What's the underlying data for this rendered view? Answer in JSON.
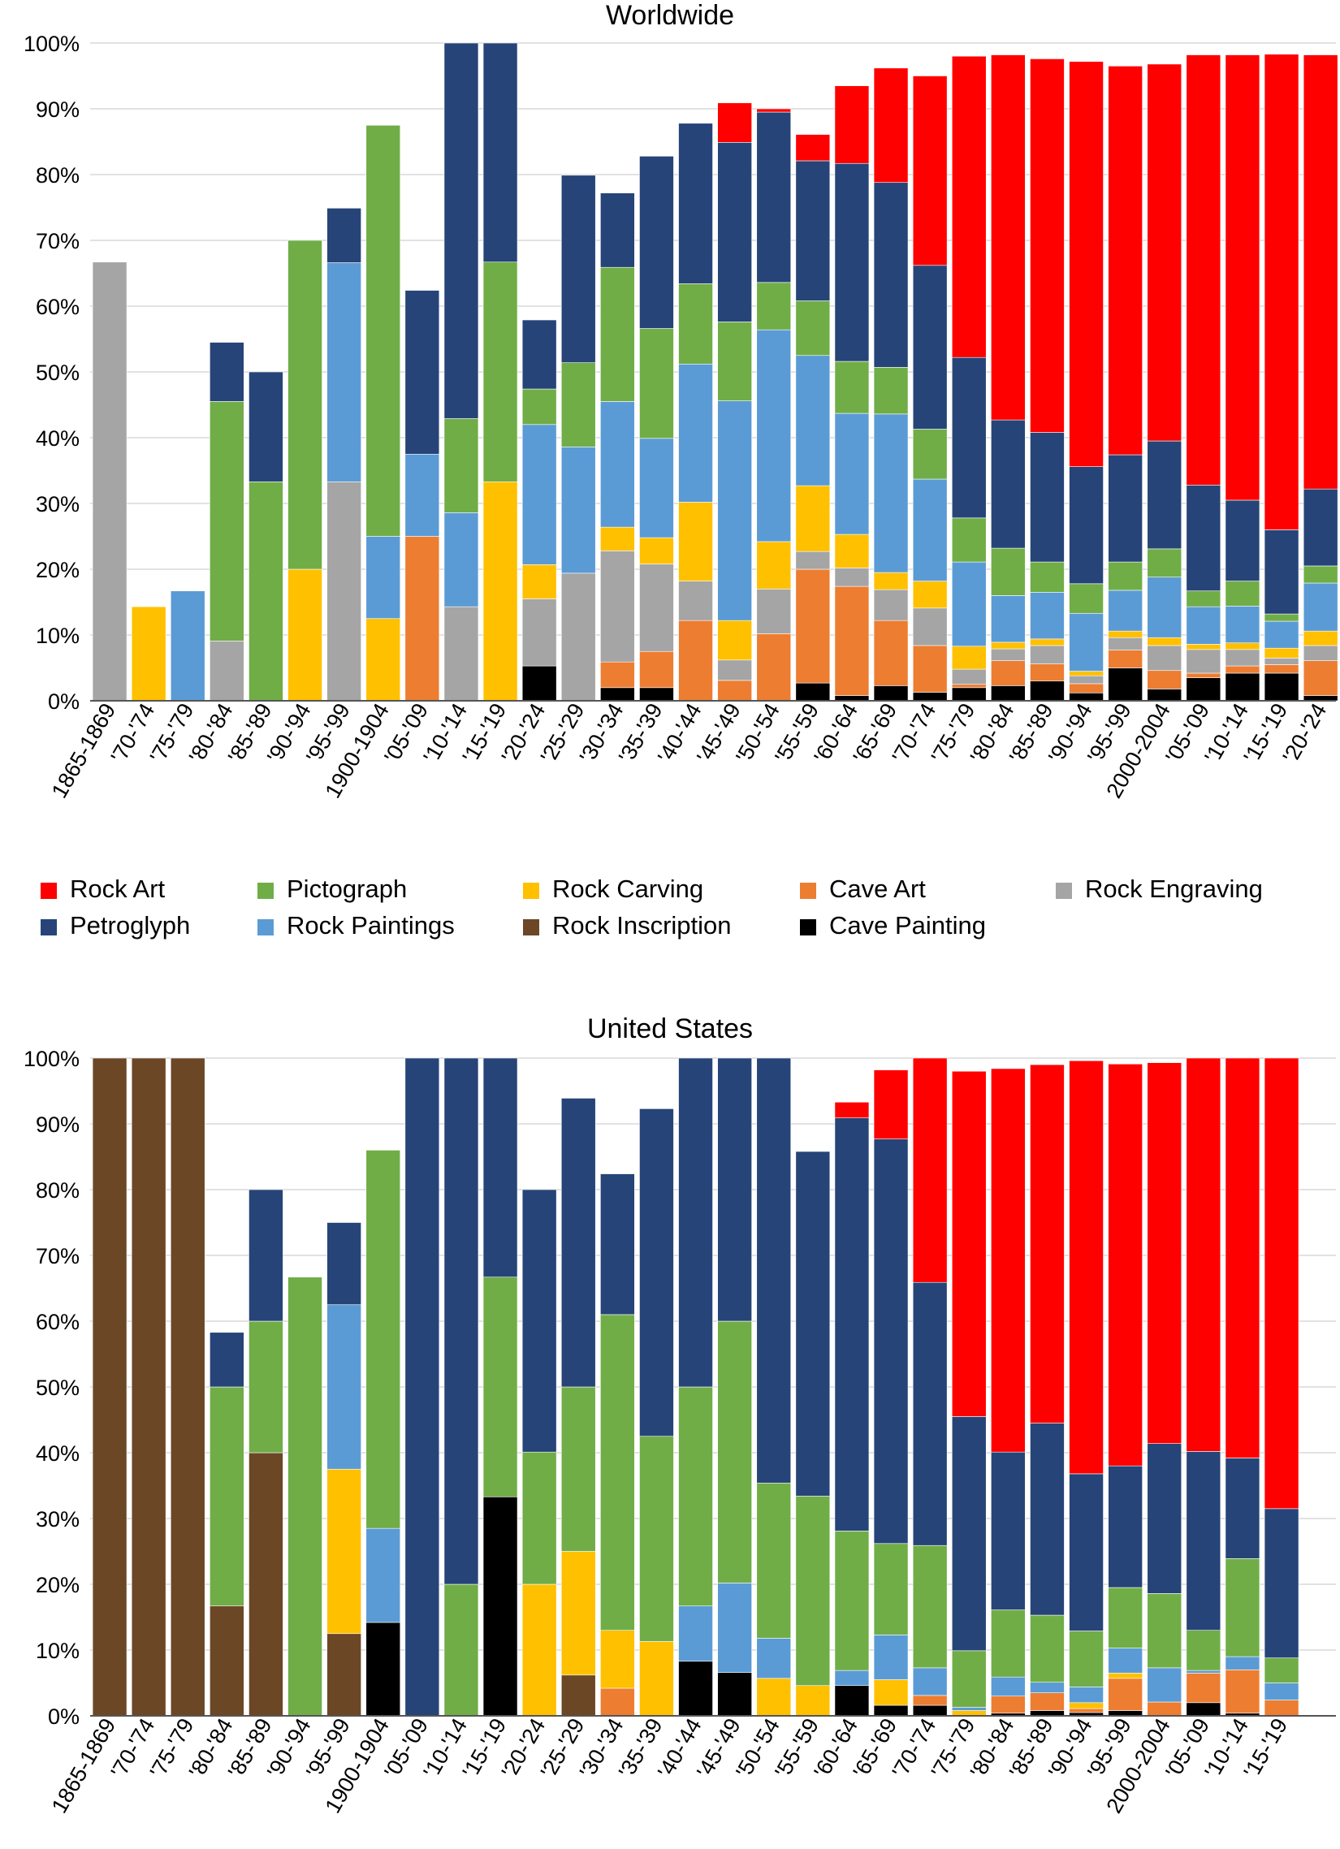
{
  "colors": {
    "Rock Art": "#FF0000",
    "Petroglyph": "#264478",
    "Pictograph": "#70AD47",
    "Rock Paintings": "#5B9BD5",
    "Rock Carving": "#FFC000",
    "Rock Inscription": "#6B4726",
    "Cave Art": "#ED7D31",
    "Cave Painting": "#000000",
    "Rock Engraving": "#A5A5A5"
  },
  "legend": [
    "Rock Art",
    "Pictograph",
    "Rock Carving",
    "Cave Art",
    "Rock Engraving",
    "Petroglyph",
    "Rock Paintings",
    "Rock Inscription",
    "Cave Painting"
  ],
  "chart_data": [
    {
      "type": "bar",
      "stacked": true,
      "title": "Worldwide",
      "ylim": [
        0,
        100
      ],
      "yticks": [
        "0%",
        "10%",
        "20%",
        "30%",
        "40%",
        "50%",
        "60%",
        "70%",
        "80%",
        "90%",
        "100%"
      ],
      "stack_order": [
        "Cave Painting",
        "Cave Art",
        "Rock Inscription",
        "Rock Engraving",
        "Rock Carving",
        "Rock Paintings",
        "Pictograph",
        "Petroglyph",
        "Rock Art"
      ],
      "categories": [
        "1865-1869",
        "'70-'74",
        "'75-'79",
        "'80-'84",
        "'85-'89",
        "'90-'94",
        "'95-'99",
        "1900-1904",
        "'05-'09",
        "'10-'14",
        "'15-'19",
        "'20-'24",
        "'25-'29",
        "'30-'34",
        "'35-'39",
        "'40-'44",
        "'45-'49",
        "'50-'54",
        "'55-'59",
        "'60-'64",
        "'65-'69",
        "'70-'74",
        "'75-'79",
        "'80-'84",
        "'85-'89",
        "'90-'94",
        "'95-'99",
        "2000-2004",
        "'05-'09",
        "'10-'14",
        "'15-'19",
        "'20-'24"
      ],
      "series": [
        {
          "name": "Cave Painting",
          "values": [
            0,
            0,
            0,
            0,
            0,
            0,
            0,
            0,
            0,
            0,
            0,
            5.3,
            0,
            2,
            2,
            0,
            0,
            0,
            2.7,
            0.8,
            2.3,
            1.3,
            2,
            2.3,
            3,
            1.2,
            5,
            1.8,
            3.5,
            4.2,
            4.2,
            0.8
          ]
        },
        {
          "name": "Cave Art",
          "values": [
            0,
            0,
            0,
            0,
            0,
            0,
            0,
            0,
            25,
            0,
            0,
            0,
            0,
            3.9,
            5.5,
            12.2,
            3.1,
            10.2,
            17.3,
            16.6,
            9.9,
            7.1,
            0.5,
            3.8,
            2.6,
            1.4,
            2.7,
            2.8,
            0.7,
            1.1,
            1.3,
            5.3
          ]
        },
        {
          "name": "Rock Inscription",
          "values": [
            0,
            0,
            0,
            0,
            0,
            0,
            0,
            0,
            0,
            0,
            0,
            0,
            0,
            0,
            0,
            0,
            0,
            0,
            0,
            0,
            0,
            0,
            0,
            0,
            0,
            0,
            0,
            0,
            0,
            0,
            0,
            0
          ]
        },
        {
          "name": "Rock Engraving",
          "values": [
            66.7,
            0,
            0,
            9.1,
            0,
            0,
            33.3,
            0,
            0,
            14.3,
            0,
            10.2,
            19.4,
            16.9,
            13.3,
            6,
            3.1,
            6.8,
            2.7,
            2.8,
            4.7,
            5.7,
            2.3,
            1.8,
            2.8,
            1.2,
            1.9,
            3.8,
            3.6,
            2.5,
            1,
            2.3
          ]
        },
        {
          "name": "Rock Carving",
          "values": [
            0,
            14.3,
            0,
            0,
            0,
            20,
            0,
            12.5,
            0,
            0,
            33.3,
            5.2,
            0,
            3.6,
            4,
            12,
            6,
            7.2,
            10,
            5.1,
            2.6,
            4.1,
            3.5,
            1,
            1,
            0.7,
            1,
            1.2,
            0.8,
            1,
            1.5,
            2.2
          ]
        },
        {
          "name": "Rock Paintings",
          "values": [
            0,
            0,
            16.7,
            0,
            0,
            0,
            33.3,
            12.5,
            12.5,
            14.3,
            0,
            21.3,
            19.2,
            19.1,
            15.1,
            21,
            33.4,
            32.2,
            19.8,
            18.4,
            24.1,
            15.5,
            12.8,
            7.1,
            7.1,
            8.8,
            6.2,
            9.2,
            5.7,
            5.6,
            4.1,
            7.3
          ]
        },
        {
          "name": "Pictograph",
          "values": [
            0,
            0,
            0,
            36.4,
            33.3,
            50,
            0,
            62.5,
            0,
            14.3,
            33.4,
            5.4,
            12.8,
            20.4,
            16.7,
            12.2,
            12,
            7.2,
            8.3,
            7.9,
            7.1,
            7.6,
            6.7,
            7.2,
            4.6,
            4.5,
            4.3,
            4.3,
            2.4,
            3.8,
            1.1,
            2.6
          ]
        },
        {
          "name": "Petroglyph",
          "values": [
            0,
            0,
            0,
            9,
            16.7,
            0,
            8.3,
            0,
            24.9,
            57.1,
            33.3,
            10.5,
            28.5,
            11.3,
            26.2,
            24.4,
            27.3,
            25.9,
            21.3,
            30.1,
            28.1,
            24.9,
            24.4,
            19.5,
            19.7,
            17.8,
            16.3,
            16.4,
            16.1,
            12.3,
            12.8,
            11.7
          ]
        },
        {
          "name": "Rock Art",
          "values": [
            0,
            0,
            0,
            0,
            0,
            0,
            0,
            0,
            0,
            0,
            0,
            0,
            0,
            0,
            0,
            0,
            6,
            0.5,
            4,
            11.8,
            17.4,
            28.8,
            45.8,
            55.5,
            56.8,
            61.6,
            59.1,
            57.3,
            65.4,
            67.7,
            72.3,
            66
          ]
        }
      ]
    },
    {
      "type": "bar",
      "stacked": true,
      "title": "United States",
      "ylim": [
        0,
        100
      ],
      "yticks": [
        "0%",
        "10%",
        "20%",
        "30%",
        "40%",
        "50%",
        "60%",
        "70%",
        "80%",
        "90%",
        "100%"
      ],
      "stack_order": [
        "Cave Painting",
        "Cave Art",
        "Rock Inscription",
        "Rock Engraving",
        "Rock Carving",
        "Rock Paintings",
        "Pictograph",
        "Petroglyph",
        "Rock Art"
      ],
      "categories": [
        "1865-1869",
        "'70-'74",
        "'75-'79",
        "'80-'84",
        "'85-'89",
        "'90-'94",
        "'95-'99",
        "1900-1904",
        "'05-'09",
        "'10-'14",
        "'15-'19",
        "'20-'24",
        "'25-'29",
        "'30-'34",
        "'35-'39",
        "'40-'44",
        "'45-'49",
        "'50-'54",
        "'55-'59",
        "'60-'64",
        "'65-'69",
        "'70-'74",
        "'75-'79",
        "'80-'84",
        "'85-'89",
        "'90-'94",
        "'95-'99",
        "2000-2004",
        "'05-'09",
        "'10-'14",
        "'15-'19"
      ],
      "series": [
        {
          "name": "Cave Painting",
          "values": [
            0,
            0,
            0,
            0,
            0,
            0,
            0,
            14.2,
            0,
            0,
            33.3,
            0,
            0,
            0,
            0,
            8.3,
            6.6,
            0,
            0,
            4.6,
            1.6,
            1.6,
            0,
            0.4,
            0.8,
            0.5,
            0.8,
            0,
            2,
            0.4,
            0
          ]
        },
        {
          "name": "Cave Art",
          "values": [
            0,
            0,
            0,
            0,
            0,
            0,
            0,
            0,
            0,
            0,
            0,
            0,
            0,
            4.2,
            0,
            0,
            0,
            0,
            0,
            0,
            0,
            1.5,
            0,
            2.6,
            2.7,
            0.6,
            4.9,
            2.1,
            4.5,
            6.6,
            2.4
          ]
        },
        {
          "name": "Rock Inscription",
          "values": [
            100,
            100,
            100,
            16.7,
            40,
            0,
            12.5,
            0,
            0,
            0,
            0,
            0,
            6.2,
            0,
            0,
            0,
            0,
            0,
            0,
            0,
            0,
            0,
            0,
            0,
            0,
            0,
            0,
            0,
            0,
            0,
            0
          ]
        },
        {
          "name": "Rock Engraving",
          "values": [
            0,
            0,
            0,
            0,
            0,
            0,
            0,
            0,
            0,
            0,
            0,
            0,
            0,
            0,
            0,
            0,
            0,
            0,
            0,
            0,
            0,
            0,
            0,
            0,
            0,
            0,
            0,
            0,
            0,
            0,
            0
          ]
        },
        {
          "name": "Rock Carving",
          "values": [
            0,
            0,
            0,
            0,
            0,
            0,
            25,
            0,
            0,
            0,
            0,
            20,
            18.8,
            8.8,
            11.3,
            0,
            0,
            5.7,
            4.6,
            0,
            3.9,
            0,
            0.8,
            0,
            0,
            0.9,
            0.8,
            0,
            0,
            0,
            0
          ]
        },
        {
          "name": "Rock Paintings",
          "values": [
            0,
            0,
            0,
            0,
            0,
            0,
            25,
            14.3,
            0,
            0,
            0,
            0,
            0,
            0,
            0,
            8.4,
            13.6,
            6.1,
            0,
            2.3,
            6.8,
            4.2,
            0.5,
            2.9,
            1.6,
            2.4,
            3.8,
            5.2,
            0.4,
            2,
            2.6
          ]
        },
        {
          "name": "Pictograph",
          "values": [
            0,
            0,
            0,
            33.3,
            20,
            66.7,
            0,
            57.5,
            0,
            20,
            33.4,
            20.1,
            25,
            48,
            31.2,
            33.3,
            39.8,
            23.6,
            28.8,
            21.2,
            13.9,
            18.6,
            8.6,
            10.2,
            10.2,
            8.5,
            9.2,
            11.3,
            6.1,
            14.9,
            3.8
          ]
        },
        {
          "name": "Petroglyph",
          "values": [
            0,
            0,
            0,
            8.3,
            20,
            0,
            12.5,
            0,
            100,
            80,
            33.3,
            39.9,
            43.9,
            21.4,
            49.8,
            50,
            40,
            64.6,
            52.4,
            62.8,
            61.5,
            40,
            35.6,
            24,
            29.2,
            23.9,
            18.5,
            22.8,
            27.2,
            15.3,
            22.7
          ]
        },
        {
          "name": "Rock Art",
          "values": [
            0,
            0,
            0,
            0,
            0,
            0,
            0,
            0,
            0,
            0,
            0,
            0,
            0,
            0,
            0,
            0,
            0,
            0,
            0,
            2.4,
            10.5,
            34.1,
            52.5,
            58.3,
            54.5,
            62.8,
            61.1,
            57.9,
            59.8,
            60.8,
            68.5
          ]
        }
      ]
    }
  ]
}
